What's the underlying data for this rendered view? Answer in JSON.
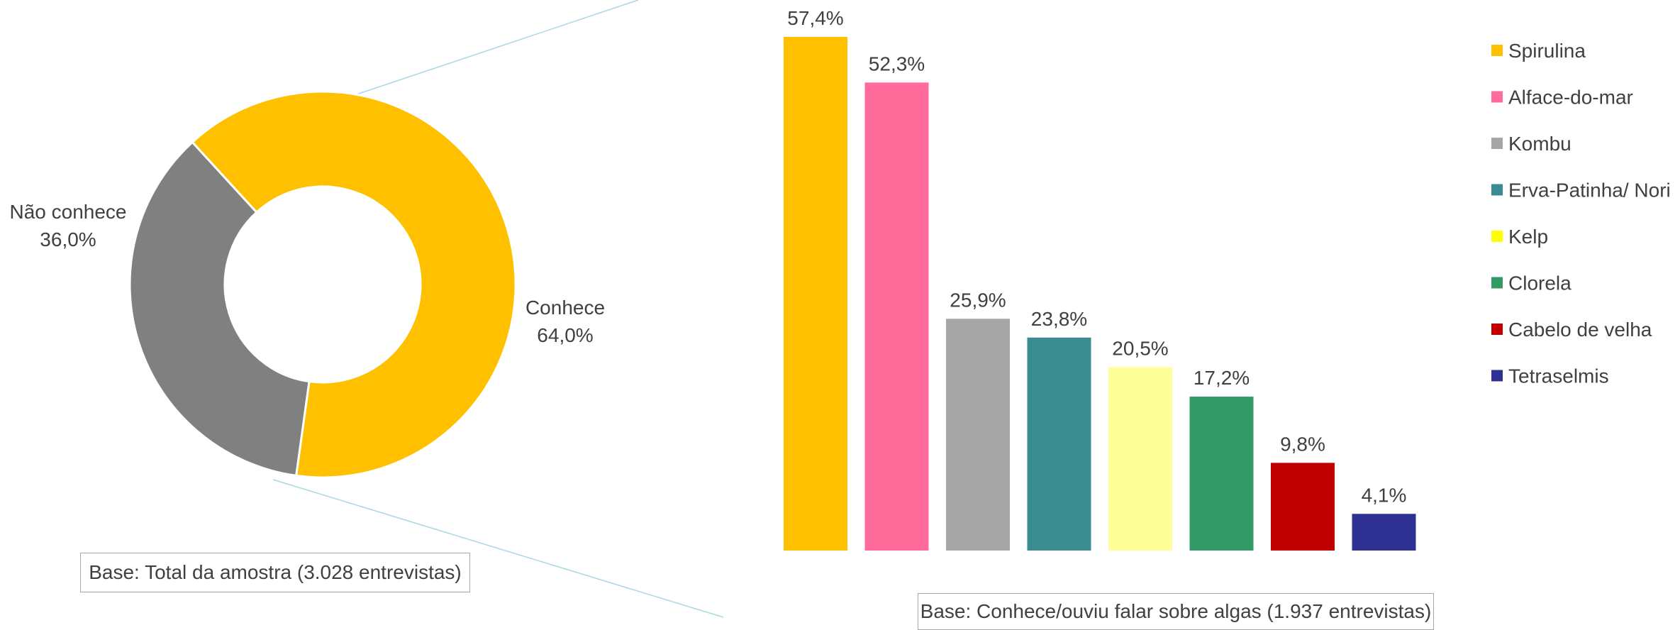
{
  "colors": {
    "conhece": "#FFC000",
    "nao_conhece": "#808080",
    "connector": "#A9D8E3",
    "text": "#404040"
  },
  "chart_data": [
    {
      "type": "pie",
      "subtype": "donut",
      "slices": [
        {
          "label": "Conhece",
          "value": 64.0,
          "value_label": "64,0%",
          "color": "#FFC000"
        },
        {
          "label": "Não conhece",
          "value": 36.0,
          "value_label": "36,0%",
          "color": "#808080"
        }
      ],
      "legend": "none"
    },
    {
      "type": "bar",
      "categories": [
        "Spirulina",
        "Alface-do-mar",
        "Kombu",
        "Erva-Patinha/ Nori",
        "Kelp",
        "Clorela",
        "Cabelo de velha",
        "Tetraselmis"
      ],
      "values": [
        57.4,
        52.3,
        25.9,
        23.8,
        20.5,
        17.2,
        9.8,
        4.1
      ],
      "value_labels": [
        "57,4%",
        "52,3%",
        "25,9%",
        "23,8%",
        "20,5%",
        "17,2%",
        "9,8%",
        "4,1%"
      ],
      "colors": [
        "#FFC000",
        "#FF6B9A",
        "#A6A6A6",
        "#3B8C91",
        "#FFFF99",
        "#339966",
        "#C00000",
        "#2E3192"
      ],
      "legend_swatch_colors": [
        "#FFC000",
        "#FF6B9A",
        "#A6A6A6",
        "#3B8C91",
        "#FFFF00",
        "#339966",
        "#C00000",
        "#2E3192"
      ],
      "ylim": [
        0,
        57.4
      ],
      "grid": false,
      "legend": "right"
    }
  ],
  "footnotes": {
    "left": "Base: Total da amostra (3.028 entrevistas)",
    "right": "Base: Conhece/ouviu falar sobre algas (1.937 entrevistas)"
  }
}
